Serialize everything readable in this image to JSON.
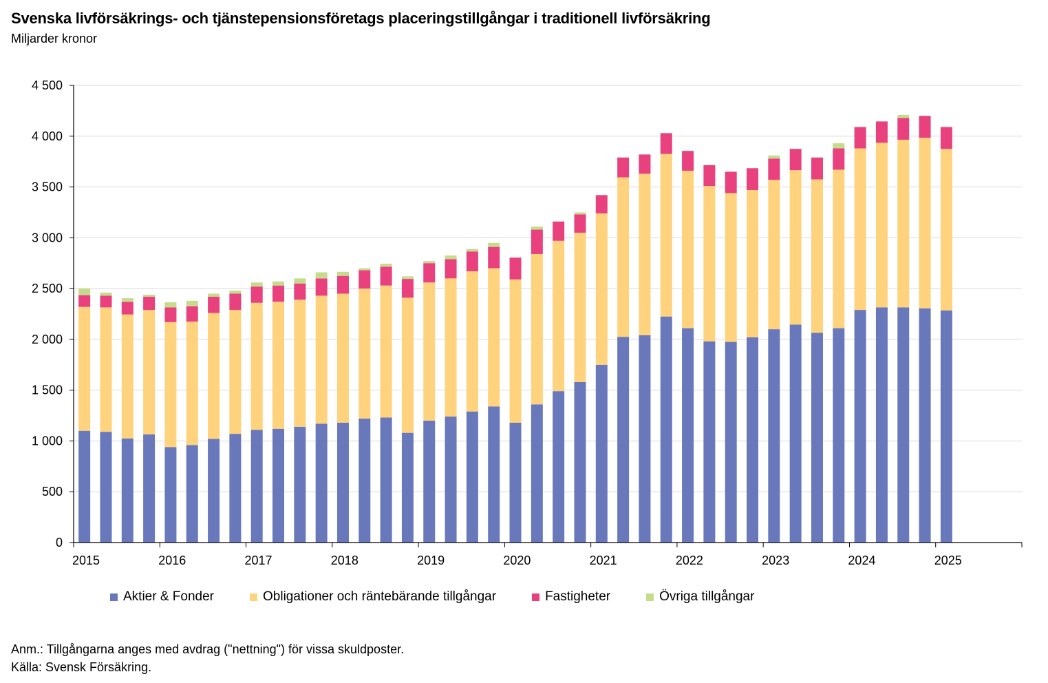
{
  "title": "Svenska livförsäkrings- och tjänstepensionsföretags placeringstillgångar i traditionell livförsäkring",
  "subtitle": "Miljarder kronor",
  "note": "Anm.: Tillgångarna anges med avdrag (\"nettning\") för vissa skuldposter.",
  "source": "Källa: Svensk Försäkring.",
  "colors": {
    "aktier": "#6878bb",
    "obligationer": "#ffd27e",
    "fastigheter": "#e8417e",
    "ovriga": "#c5dc8c",
    "grid": "#d9d9d9",
    "axis": "#000000"
  },
  "chart_data": {
    "type": "bar",
    "stacked": true,
    "ylim": [
      0,
      4500
    ],
    "yticks": [
      0,
      500,
      1000,
      1500,
      2000,
      2500,
      3000,
      3500,
      4000,
      4500
    ],
    "ytick_labels": [
      "0",
      "500",
      "1 000",
      "1 500",
      "2 000",
      "2 500",
      "3 000",
      "3 500",
      "4 000",
      "4 500"
    ],
    "year_labels": [
      "2015",
      "2016",
      "2017",
      "2018",
      "2019",
      "2020",
      "2021",
      "2022",
      "2023",
      "2024",
      "2025"
    ],
    "grid": "horizontal",
    "legend_position": "bottom",
    "categories": [
      "2015Q1",
      "2015Q2",
      "2015Q3",
      "2015Q4",
      "2016Q1",
      "2016Q2",
      "2016Q3",
      "2016Q4",
      "2017Q1",
      "2017Q2",
      "2017Q3",
      "2017Q4",
      "2018Q1",
      "2018Q2",
      "2018Q3",
      "2018Q4",
      "2019Q1",
      "2019Q2",
      "2019Q3",
      "2019Q4",
      "2020Q1",
      "2020Q2",
      "2020Q3",
      "2020Q4",
      "2021Q1",
      "2021Q2",
      "2021Q3",
      "2021Q4",
      "2022Q1",
      "2022Q2",
      "2022Q3",
      "2022Q4",
      "2023Q1",
      "2023Q2",
      "2023Q3",
      "2023Q4",
      "2024Q1",
      "2024Q2",
      "2024Q3",
      "2024Q4",
      "2025Q1"
    ],
    "series": [
      {
        "name": "Aktier & Fonder",
        "color_key": "aktier",
        "values": [
          1100,
          1090,
          1025,
          1065,
          940,
          960,
          1020,
          1070,
          1110,
          1120,
          1140,
          1170,
          1180,
          1220,
          1230,
          1080,
          1200,
          1240,
          1290,
          1340,
          1180,
          1360,
          1490,
          1580,
          1750,
          2025,
          2040,
          2225,
          2110,
          1980,
          1975,
          2020,
          2100,
          2145,
          2065,
          2110,
          2290,
          2315,
          2315,
          2305,
          2285
        ]
      },
      {
        "name": "Obligationer och räntebärande tillgångar",
        "color_key": "obligationer",
        "values": [
          1220,
          1225,
          1220,
          1225,
          1230,
          1215,
          1240,
          1220,
          1250,
          1250,
          1250,
          1260,
          1270,
          1280,
          1300,
          1330,
          1360,
          1360,
          1380,
          1360,
          1410,
          1480,
          1480,
          1470,
          1490,
          1570,
          1590,
          1600,
          1550,
          1530,
          1465,
          1450,
          1470,
          1520,
          1510,
          1560,
          1590,
          1620,
          1650,
          1680,
          1590
        ]
      },
      {
        "name": "Fastigheter",
        "color_key": "fastigheter",
        "values": [
          115,
          115,
          125,
          130,
          145,
          150,
          160,
          160,
          160,
          160,
          160,
          170,
          175,
          180,
          185,
          185,
          190,
          190,
          195,
          210,
          215,
          240,
          190,
          180,
          180,
          195,
          190,
          205,
          195,
          205,
          210,
          215,
          210,
          210,
          215,
          210,
          210,
          210,
          215,
          215,
          215
        ]
      },
      {
        "name": "Övriga tillgångar",
        "color_key": "ovriga",
        "values": [
          65,
          30,
          35,
          20,
          50,
          55,
          30,
          30,
          40,
          40,
          50,
          60,
          40,
          20,
          30,
          25,
          20,
          35,
          25,
          40,
          0,
          30,
          0,
          20,
          0,
          0,
          0,
          0,
          0,
          0,
          0,
          0,
          30,
          0,
          0,
          50,
          0,
          0,
          30,
          0,
          0
        ]
      }
    ]
  },
  "legend": [
    {
      "label": "Aktier & Fonder",
      "color_key": "aktier"
    },
    {
      "label": "Obligationer och räntebärande tillgångar",
      "color_key": "obligationer"
    },
    {
      "label": "Fastigheter",
      "color_key": "fastigheter"
    },
    {
      "label": "Övriga tillgångar",
      "color_key": "ovriga"
    }
  ]
}
